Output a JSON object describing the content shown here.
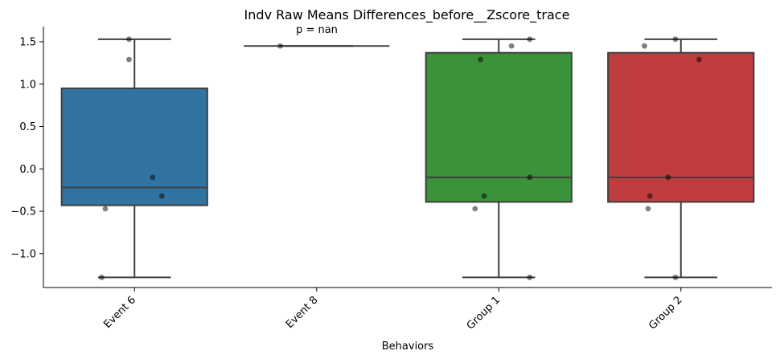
{
  "chart_data": {
    "type": "box",
    "title": "Indv Raw Means Differences_before__Zscore_trace",
    "xlabel": "Behaviors",
    "ylabel": "",
    "ylim": [
      -1.4,
      1.68
    ],
    "yticks": [
      -1.0,
      -0.5,
      0.0,
      0.5,
      1.0,
      1.5
    ],
    "ytick_labels": [
      "−1.0",
      "−0.5",
      "0.0",
      "0.5",
      "1.0",
      "1.5"
    ],
    "grid": false,
    "annotation": "p = nan",
    "categories": [
      "Event 6",
      "Event 8",
      "Group 1",
      "Group 2"
    ],
    "boxes": [
      {
        "category": "Event 6",
        "color": "#3274a1",
        "whislo": -1.28,
        "q1": -0.43,
        "med": -0.22,
        "q3": 0.95,
        "whishi": 1.53
      },
      {
        "category": "Event 8",
        "color": "#e1812c",
        "whislo": 1.45,
        "q1": 1.45,
        "med": 1.45,
        "q3": 1.45,
        "whishi": 1.45
      },
      {
        "category": "Group 1",
        "color": "#3a923a",
        "whislo": -1.28,
        "q1": -0.39,
        "med": -0.1,
        "q3": 1.37,
        "whishi": 1.53
      },
      {
        "category": "Group 2",
        "color": "#c03d3e",
        "whislo": -1.28,
        "q1": -0.39,
        "med": -0.1,
        "q3": 1.37,
        "whishi": 1.53
      }
    ],
    "points": [
      {
        "category": "Event 6",
        "y": 1.53,
        "jitter": -0.03
      },
      {
        "category": "Event 6",
        "y": 1.29,
        "jitter": -0.03
      },
      {
        "category": "Event 6",
        "y": -0.1,
        "jitter": 0.1
      },
      {
        "category": "Event 6",
        "y": -0.32,
        "jitter": 0.15
      },
      {
        "category": "Event 6",
        "y": -0.47,
        "jitter": -0.16
      },
      {
        "category": "Event 6",
        "y": -1.28,
        "jitter": -0.18
      },
      {
        "category": "Event 8",
        "y": 1.45,
        "jitter": -0.2
      },
      {
        "category": "Group 1",
        "y": 1.53,
        "jitter": 0.17
      },
      {
        "category": "Group 1",
        "y": 1.45,
        "jitter": 0.07
      },
      {
        "category": "Group 1",
        "y": 1.29,
        "jitter": -0.1
      },
      {
        "category": "Group 1",
        "y": -0.1,
        "jitter": 0.17
      },
      {
        "category": "Group 1",
        "y": -0.32,
        "jitter": -0.08
      },
      {
        "category": "Group 1",
        "y": -0.47,
        "jitter": -0.13
      },
      {
        "category": "Group 1",
        "y": -1.28,
        "jitter": 0.17
      },
      {
        "category": "Group 2",
        "y": 1.53,
        "jitter": -0.03
      },
      {
        "category": "Group 2",
        "y": 1.45,
        "jitter": -0.2
      },
      {
        "category": "Group 2",
        "y": 1.29,
        "jitter": 0.1
      },
      {
        "category": "Group 2",
        "y": -0.1,
        "jitter": -0.07
      },
      {
        "category": "Group 2",
        "y": -0.32,
        "jitter": -0.17
      },
      {
        "category": "Group 2",
        "y": -0.47,
        "jitter": -0.18
      },
      {
        "category": "Group 2",
        "y": -1.28,
        "jitter": -0.03
      }
    ]
  }
}
